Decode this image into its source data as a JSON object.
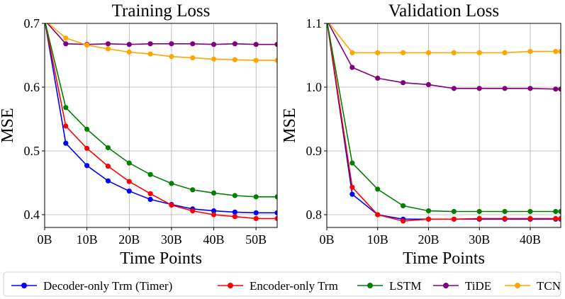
{
  "chart_data": [
    {
      "type": "line",
      "title": "Training Loss",
      "xlabel": "Time Points",
      "ylabel": "MSE",
      "xlim": [
        0,
        55
      ],
      "ylim": [
        0.38,
        0.7
      ],
      "xticks": [
        0,
        10,
        20,
        30,
        40,
        50
      ],
      "xtick_labels": [
        "0B",
        "10B",
        "20B",
        "30B",
        "40B",
        "50B"
      ],
      "yticks": [
        0.4,
        0.5,
        0.6,
        0.7
      ],
      "ytick_labels": [
        "0.4",
        "0.5",
        "0.6",
        "0.7"
      ],
      "grid": true,
      "x": [
        0,
        5,
        10,
        15,
        20,
        25,
        30,
        35,
        40,
        45,
        50,
        55
      ],
      "series": [
        {
          "name": "Decoder-only Trm (Timer)",
          "color": "#0000ff",
          "values": [
            0.705,
            0.512,
            0.477,
            0.453,
            0.437,
            0.424,
            0.416,
            0.409,
            0.406,
            0.404,
            0.403,
            0.403
          ]
        },
        {
          "name": "Encoder-only Trm",
          "color": "#ff0000",
          "values": [
            0.705,
            0.539,
            0.504,
            0.476,
            0.452,
            0.433,
            0.415,
            0.406,
            0.4,
            0.397,
            0.394,
            0.394
          ]
        },
        {
          "name": "LSTM",
          "color": "#008000",
          "values": [
            0.705,
            0.568,
            0.534,
            0.505,
            0.481,
            0.463,
            0.449,
            0.439,
            0.434,
            0.43,
            0.428,
            0.428
          ]
        },
        {
          "name": "TiDE",
          "color": "#800080",
          "values": [
            0.705,
            0.668,
            0.667,
            0.668,
            0.667,
            0.668,
            0.668,
            0.668,
            0.667,
            0.668,
            0.667,
            0.667
          ]
        },
        {
          "name": "TCN",
          "color": "#ffa500",
          "values": [
            0.705,
            0.677,
            0.666,
            0.66,
            0.655,
            0.652,
            0.648,
            0.646,
            0.644,
            0.643,
            0.642,
            0.642
          ]
        }
      ]
    },
    {
      "type": "line",
      "title": "Validation Loss",
      "xlabel": "Time Points",
      "ylabel": "MSE",
      "xlim": [
        0,
        46
      ],
      "ylim": [
        0.78,
        1.1
      ],
      "xticks": [
        0,
        10,
        20,
        30,
        40
      ],
      "xtick_labels": [
        "0B",
        "10B",
        "20B",
        "30B",
        "40B"
      ],
      "yticks": [
        0.8,
        0.9,
        1.0,
        1.1
      ],
      "ytick_labels": [
        "0.8",
        "0.9",
        "1.0",
        "1.1"
      ],
      "grid": true,
      "x": [
        0,
        5,
        10,
        15,
        20,
        25,
        30,
        35,
        40,
        45,
        46
      ],
      "series": [
        {
          "name": "Decoder-only Trm (Timer)",
          "color": "#0000ff",
          "values": [
            1.105,
            0.832,
            0.8,
            0.793,
            0.793,
            0.793,
            0.793,
            0.793,
            0.793,
            0.793,
            0.793
          ]
        },
        {
          "name": "Encoder-only Trm",
          "color": "#ff0000",
          "values": [
            1.105,
            0.843,
            0.8,
            0.79,
            0.793,
            0.793,
            0.794,
            0.794,
            0.794,
            0.794,
            0.794
          ]
        },
        {
          "name": "LSTM",
          "color": "#008000",
          "values": [
            1.105,
            0.881,
            0.84,
            0.814,
            0.806,
            0.805,
            0.805,
            0.805,
            0.805,
            0.805,
            0.805
          ]
        },
        {
          "name": "TiDE",
          "color": "#800080",
          "values": [
            1.105,
            1.031,
            1.014,
            1.007,
            1.004,
            0.998,
            0.998,
            0.998,
            0.998,
            0.997,
            0.997
          ]
        },
        {
          "name": "TCN",
          "color": "#ffa500",
          "values": [
            1.105,
            1.054,
            1.054,
            1.054,
            1.054,
            1.054,
            1.054,
            1.054,
            1.056,
            1.056,
            1.056
          ]
        }
      ]
    }
  ],
  "legend": {
    "placement": "bottom",
    "items": [
      "Decoder-only Trm (Timer)",
      "Encoder-only Trm",
      "LSTM",
      "TiDE",
      "TCN"
    ]
  }
}
